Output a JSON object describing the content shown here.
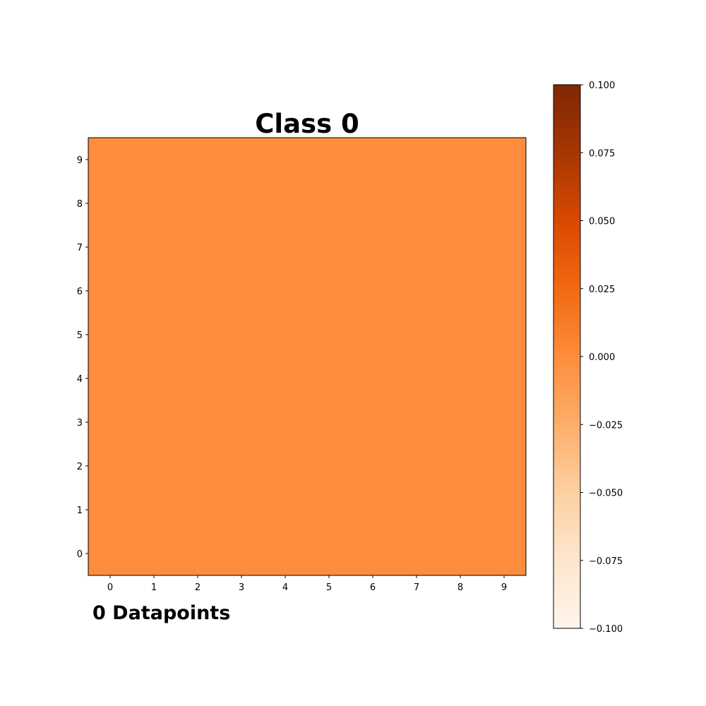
{
  "chart_data": {
    "type": "heatmap",
    "title": "Class 0",
    "footnote": "0 Datapoints",
    "x_ticks": [
      "0",
      "1",
      "2",
      "3",
      "4",
      "5",
      "6",
      "7",
      "8",
      "9"
    ],
    "y_ticks": [
      "0",
      "1",
      "2",
      "3",
      "4",
      "5",
      "6",
      "7",
      "8",
      "9"
    ],
    "xlim": [
      -0.5,
      9.5
    ],
    "ylim": [
      -0.5,
      9.5
    ],
    "values": [
      [
        0,
        0,
        0,
        0,
        0,
        0,
        0,
        0,
        0,
        0
      ],
      [
        0,
        0,
        0,
        0,
        0,
        0,
        0,
        0,
        0,
        0
      ],
      [
        0,
        0,
        0,
        0,
        0,
        0,
        0,
        0,
        0,
        0
      ],
      [
        0,
        0,
        0,
        0,
        0,
        0,
        0,
        0,
        0,
        0
      ],
      [
        0,
        0,
        0,
        0,
        0,
        0,
        0,
        0,
        0,
        0
      ],
      [
        0,
        0,
        0,
        0,
        0,
        0,
        0,
        0,
        0,
        0
      ],
      [
        0,
        0,
        0,
        0,
        0,
        0,
        0,
        0,
        0,
        0
      ],
      [
        0,
        0,
        0,
        0,
        0,
        0,
        0,
        0,
        0,
        0
      ],
      [
        0,
        0,
        0,
        0,
        0,
        0,
        0,
        0,
        0,
        0
      ],
      [
        0,
        0,
        0,
        0,
        0,
        0,
        0,
        0,
        0,
        0
      ]
    ],
    "colorbar": {
      "colormap": "Oranges",
      "vmin": -0.1,
      "vmax": 0.1,
      "ticks": [
        0.1,
        0.075,
        0.05,
        0.025,
        0.0,
        -0.025,
        -0.05,
        -0.075,
        -0.1
      ],
      "tick_labels": [
        "0.100",
        "0.075",
        "0.050",
        "0.025",
        "0.000",
        "−0.025",
        "−0.050",
        "−0.075",
        "−0.100"
      ],
      "stops": [
        "#fff5eb",
        "#fee6ce",
        "#fdd0a2",
        "#fdae6b",
        "#fd8d3c",
        "#f16913",
        "#d94801",
        "#a63603",
        "#7f2704"
      ]
    },
    "grid": false
  }
}
